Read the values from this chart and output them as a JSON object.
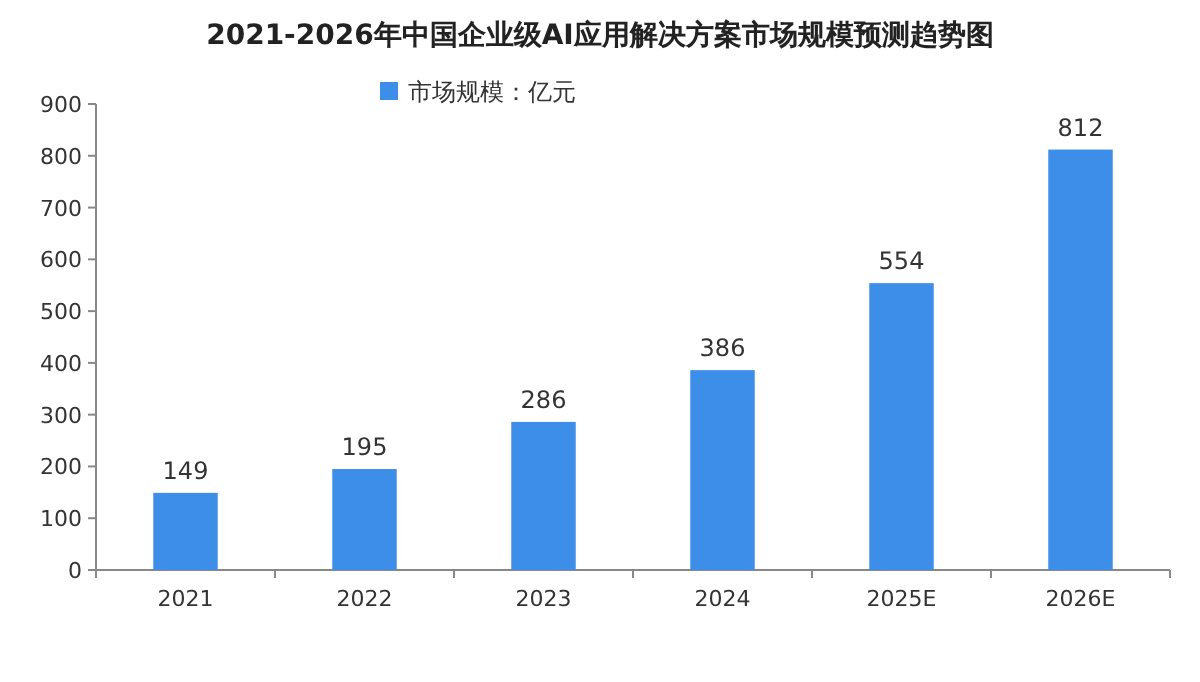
{
  "chart_data": {
    "type": "bar",
    "title": "2021-2026年中国企业级AI应用解决方案市场规模预测趋势图",
    "categories": [
      "2021",
      "2022",
      "2023",
      "2024",
      "2025E",
      "2026E"
    ],
    "series": [
      {
        "name": "市场规模：亿元",
        "color": "#3d8ee8",
        "values": [
          149,
          195,
          286,
          386,
          554,
          812
        ]
      }
    ],
    "ylim": [
      0,
      900
    ],
    "yticks": [
      0,
      100,
      200,
      300,
      400,
      500,
      600,
      700,
      800,
      900
    ],
    "data_labels": true,
    "legend": "top",
    "grid": false
  }
}
